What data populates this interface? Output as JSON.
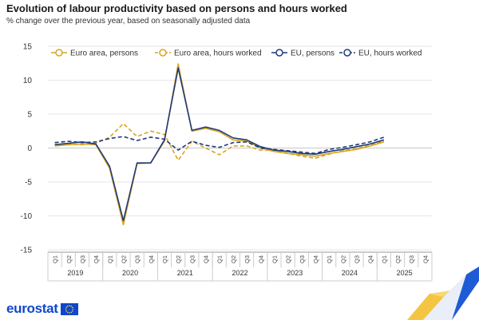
{
  "header": {
    "title": "Evolution of labour productivity based on persons and hours worked",
    "subtitle": "% change over the previous year, based on seasonally adjusted data"
  },
  "branding": {
    "logo_text": "eurostat"
  },
  "colors": {
    "gold": "#d9a520",
    "navy": "#1f3a7a",
    "grid": "#e6e6e6",
    "axis": "#999999"
  },
  "chart_data": {
    "type": "line",
    "title": "Evolution of labour productivity based on persons and hours worked",
    "subtitle": "% change over the previous year, based on seasonally adjusted data",
    "ylim": [
      -15,
      15
    ],
    "y_ticks": [
      15,
      10,
      5,
      0,
      -5,
      -10,
      -15
    ],
    "grid": "horizontal",
    "legend_position": "top",
    "quarter_labels": [
      "Q1",
      "Q2",
      "Q3",
      "Q4",
      "Q1",
      "Q2",
      "Q3",
      "Q4",
      "Q1",
      "Q2",
      "Q3",
      "Q4",
      "Q1",
      "Q2",
      "Q3",
      "Q4",
      "Q1",
      "Q2",
      "Q3",
      "Q4",
      "Q1",
      "Q2",
      "Q3",
      "Q4",
      "Q1",
      "Q2",
      "Q3",
      "Q4"
    ],
    "years": [
      "2019",
      "2020",
      "2021",
      "2022",
      "2023",
      "2024",
      "2025"
    ],
    "series": [
      {
        "name": "Euro area, persons",
        "color": "#d9a520",
        "dash": "solid",
        "values": [
          0.3,
          0.5,
          0.6,
          0.5,
          -3.0,
          -11.3,
          -2.3,
          -2.2,
          1.0,
          12.4,
          2.5,
          2.9,
          2.4,
          1.2,
          1.0,
          0.0,
          -0.5,
          -0.8,
          -1.0,
          -1.2,
          -0.8,
          -0.5,
          -0.2,
          0.3,
          0.9,
          null,
          null,
          null
        ]
      },
      {
        "name": "Euro area, hours worked",
        "color": "#d9a520",
        "dash": "dashed",
        "values": [
          0.5,
          0.6,
          0.5,
          0.7,
          1.6,
          3.6,
          1.7,
          2.5,
          2.0,
          -1.8,
          1.0,
          0.0,
          -1.0,
          0.3,
          0.3,
          -0.3,
          -0.3,
          -0.8,
          -1.2,
          -1.5,
          -0.9,
          -0.4,
          -0.1,
          0.5,
          1.0,
          null,
          null,
          null
        ]
      },
      {
        "name": "EU, persons",
        "color": "#1f3a7a",
        "dash": "solid",
        "values": [
          0.5,
          0.7,
          0.9,
          0.6,
          -2.7,
          -10.7,
          -2.2,
          -2.2,
          1.2,
          11.8,
          2.6,
          3.1,
          2.6,
          1.5,
          1.2,
          0.2,
          -0.3,
          -0.5,
          -0.8,
          -0.9,
          -0.5,
          -0.2,
          0.2,
          0.6,
          1.2,
          null,
          null,
          null
        ]
      },
      {
        "name": "EU, hours worked",
        "color": "#1f3a7a",
        "dash": "dashed",
        "values": [
          0.8,
          1.0,
          0.8,
          0.9,
          1.4,
          1.7,
          1.1,
          1.6,
          1.3,
          -0.3,
          1.0,
          0.4,
          0.1,
          0.8,
          0.9,
          0.0,
          -0.2,
          -0.4,
          -0.6,
          -0.8,
          -0.2,
          0.1,
          0.5,
          0.9,
          1.6,
          null,
          null,
          null
        ]
      }
    ]
  }
}
